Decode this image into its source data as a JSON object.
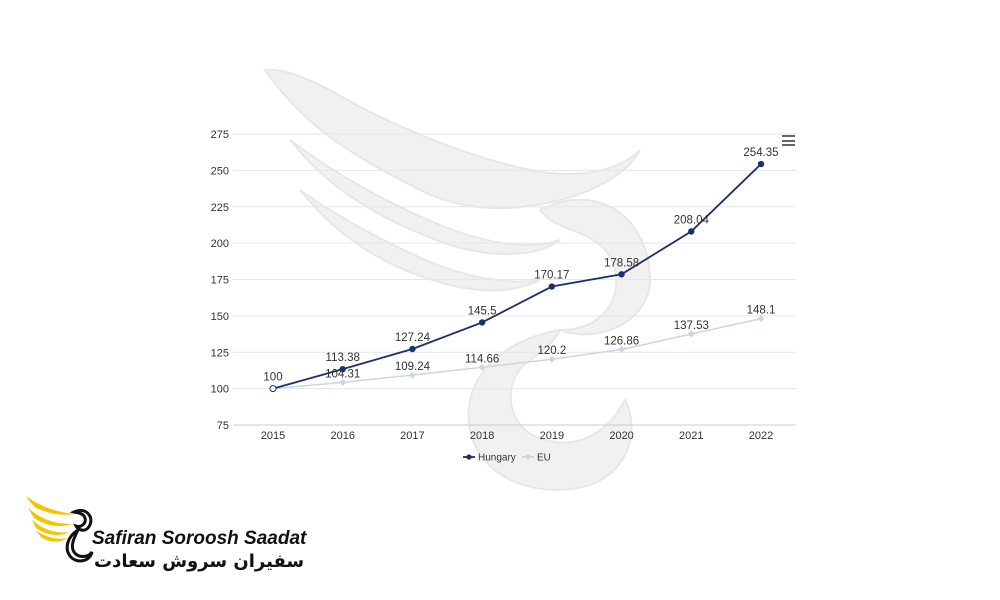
{
  "chart_data": {
    "type": "line",
    "x": [
      "2015",
      "2016",
      "2017",
      "2018",
      "2019",
      "2020",
      "2021",
      "2022"
    ],
    "series": [
      {
        "name": "Hungary",
        "values": [
          100,
          113.38,
          127.24,
          145.5,
          170.17,
          178.58,
          208.04,
          254.35
        ],
        "color": "#1c2f6e"
      },
      {
        "name": "EU",
        "values": [
          100,
          104.31,
          109.24,
          114.66,
          120.2,
          126.86,
          137.53,
          148.1
        ],
        "color": "#ccd6e0"
      }
    ],
    "data_labels": {
      "Hungary": [
        "100",
        "113.38",
        "127.24",
        "145.5",
        "170.17",
        "178.58",
        "208.04",
        "254.35"
      ],
      "EU": [
        "",
        "104.31",
        "109.24",
        "114.66",
        "120.2",
        "126.86",
        "137.53",
        "148.1"
      ]
    },
    "y_ticks": [
      "75",
      "100",
      "125",
      "150",
      "175",
      "200",
      "225",
      "250",
      "275"
    ],
    "ylim": [
      75,
      275
    ],
    "grid": true,
    "legend_position": "bottom-center",
    "title": "",
    "xlabel": "",
    "ylabel": ""
  },
  "menu_icon": "hamburger-menu-icon",
  "logo": {
    "text_en": "Safiran Soroosh Saadat",
    "text_fa": "سفیران سروش سعادت",
    "accent_color": "#f2c500"
  }
}
